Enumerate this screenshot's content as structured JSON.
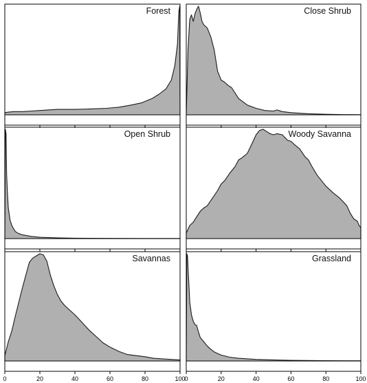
{
  "chart_data": [
    {
      "type": "area",
      "title": "Forest",
      "xlim": [
        0,
        100
      ],
      "x": [
        0,
        2,
        5,
        10,
        15,
        20,
        30,
        40,
        50,
        58,
        65,
        72,
        78,
        84,
        88,
        92,
        95,
        97,
        98.5,
        99.3,
        99.8,
        100
      ],
      "values": [
        0.02,
        0.025,
        0.03,
        0.03,
        0.035,
        0.04,
        0.05,
        0.05,
        0.055,
        0.06,
        0.07,
        0.09,
        0.11,
        0.15,
        0.19,
        0.24,
        0.32,
        0.45,
        0.65,
        0.95,
        1.0,
        0.0
      ]
    },
    {
      "type": "area",
      "title": "Close Shrub",
      "xlim": [
        0,
        100
      ],
      "x": [
        0,
        0.5,
        1,
        2,
        3,
        4,
        5,
        6,
        7,
        8,
        9,
        10,
        12,
        14,
        16,
        18,
        20,
        22,
        24,
        26,
        28,
        30,
        35,
        40,
        45,
        50,
        52,
        55,
        60,
        70,
        80,
        90,
        100
      ],
      "values": [
        0,
        0.3,
        0.6,
        0.88,
        0.92,
        0.86,
        0.93,
        0.97,
        1.0,
        0.94,
        0.86,
        0.83,
        0.8,
        0.72,
        0.6,
        0.4,
        0.32,
        0.3,
        0.27,
        0.25,
        0.2,
        0.15,
        0.09,
        0.06,
        0.04,
        0.035,
        0.045,
        0.03,
        0.02,
        0.01,
        0.005,
        0.002,
        0.001
      ]
    },
    {
      "type": "area",
      "title": "Open Shrub",
      "xlim": [
        0,
        100
      ],
      "x": [
        0,
        0.3,
        0.7,
        1,
        1.5,
        2,
        3,
        4,
        5,
        6,
        8,
        10,
        15,
        20,
        30,
        40,
        60,
        80,
        100
      ],
      "values": [
        0,
        1.0,
        0.96,
        0.6,
        0.42,
        0.28,
        0.17,
        0.12,
        0.09,
        0.065,
        0.045,
        0.035,
        0.02,
        0.012,
        0.007,
        0.004,
        0.002,
        0.001,
        0.001
      ]
    },
    {
      "type": "area",
      "title": "Woody Savanna",
      "xlim": [
        0,
        100
      ],
      "x": [
        0,
        2,
        4,
        6,
        8,
        10,
        12,
        15,
        18,
        20,
        22,
        25,
        28,
        30,
        32,
        35,
        38,
        40,
        42,
        44,
        46,
        48,
        50,
        52,
        55,
        58,
        60,
        62,
        65,
        68,
        70,
        72,
        75,
        78,
        80,
        84,
        88,
        92,
        94,
        96,
        98,
        99,
        100
      ],
      "values": [
        0.05,
        0.12,
        0.15,
        0.2,
        0.25,
        0.28,
        0.3,
        0.37,
        0.44,
        0.5,
        0.53,
        0.6,
        0.66,
        0.72,
        0.74,
        0.78,
        0.88,
        0.95,
        0.99,
        1.0,
        0.98,
        0.96,
        0.95,
        0.96,
        0.95,
        0.9,
        0.89,
        0.86,
        0.82,
        0.75,
        0.72,
        0.66,
        0.58,
        0.52,
        0.48,
        0.42,
        0.37,
        0.3,
        0.23,
        0.18,
        0.16,
        0.12,
        0.1
      ]
    },
    {
      "type": "area",
      "title": "Savannas",
      "xlim": [
        0,
        100
      ],
      "x": [
        0,
        2,
        4,
        6,
        8,
        10,
        12,
        14,
        16,
        18,
        20,
        22,
        24,
        26,
        28,
        30,
        32,
        34,
        36,
        40,
        44,
        48,
        52,
        56,
        60,
        65,
        70,
        75,
        80,
        85,
        90,
        95,
        100
      ],
      "values": [
        0.05,
        0.18,
        0.28,
        0.42,
        0.55,
        0.68,
        0.8,
        0.92,
        0.96,
        0.98,
        1.0,
        0.99,
        0.93,
        0.8,
        0.7,
        0.62,
        0.56,
        0.52,
        0.49,
        0.43,
        0.36,
        0.29,
        0.23,
        0.17,
        0.13,
        0.09,
        0.06,
        0.05,
        0.04,
        0.025,
        0.02,
        0.015,
        0.01
      ]
    },
    {
      "type": "area",
      "title": "Grassland",
      "xlim": [
        0,
        100
      ],
      "x": [
        0,
        0.3,
        0.7,
        1,
        1.5,
        2,
        3,
        4,
        5,
        6,
        7,
        8,
        10,
        12,
        14,
        16,
        18,
        20,
        25,
        30,
        40,
        50,
        60,
        80,
        100
      ],
      "values": [
        0,
        1.0,
        0.98,
        0.88,
        0.72,
        0.55,
        0.43,
        0.37,
        0.34,
        0.33,
        0.27,
        0.22,
        0.18,
        0.14,
        0.11,
        0.085,
        0.07,
        0.055,
        0.035,
        0.025,
        0.015,
        0.01,
        0.006,
        0.003,
        0.002
      ]
    }
  ],
  "x_ticks": [
    0,
    20,
    40,
    60,
    80,
    100
  ],
  "x_tick_labels": [
    "0",
    "20",
    "40",
    "60",
    "80",
    "100"
  ],
  "fill_color": "#b0b0b0",
  "stroke_color": "#1a1a1a"
}
